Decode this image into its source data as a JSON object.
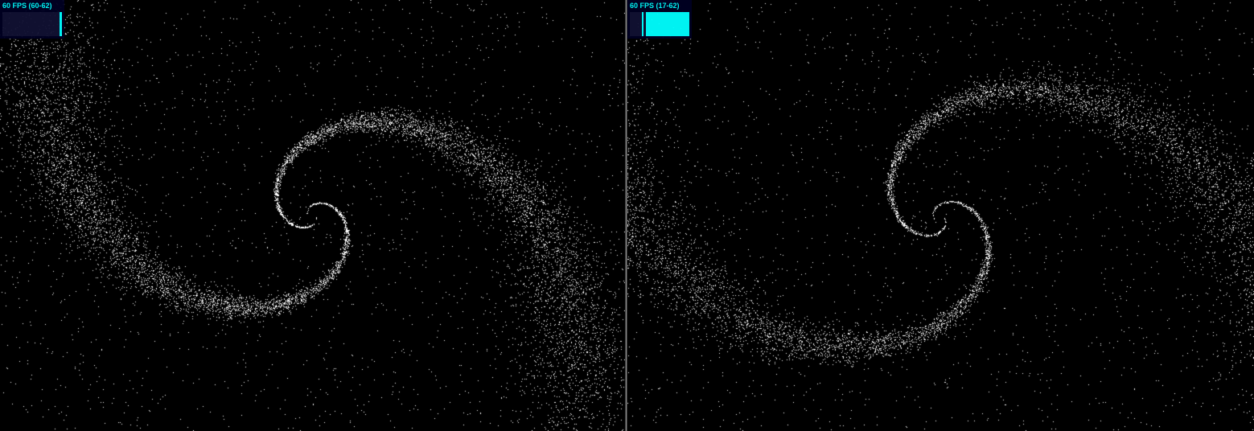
{
  "panels": [
    {
      "id": "left",
      "fps_label": "60 FPS (60-62)",
      "fps": 60,
      "fps_min": 60,
      "fps_max": 62
    },
    {
      "id": "right",
      "fps_label": "60 FPS (17-62)",
      "fps": 60,
      "fps_min": 17,
      "fps_max": 62
    }
  ],
  "colors": {
    "background": "#000000",
    "particle": "#ffffff",
    "stats_text": "#00ffff",
    "stats_bg": "#000022",
    "stats_graph_bg": "#111133",
    "divider": "#8a8a8a"
  }
}
